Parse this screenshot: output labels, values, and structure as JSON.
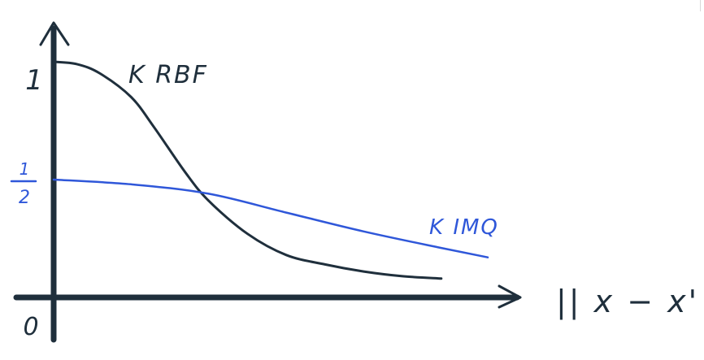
{
  "chart_data": {
    "type": "line",
    "title": "",
    "xlabel": "|| x − x' ||",
    "ylabel": "",
    "ylim": [
      0,
      1
    ],
    "y_ticks": [
      {
        "value": 1,
        "label": "1"
      },
      {
        "value": 0.5,
        "label": "1/2"
      },
      {
        "value": 0,
        "label": "0"
      }
    ],
    "grid": false,
    "legend": "none",
    "series": [
      {
        "name": "K RBF",
        "color": "#1f2f3c",
        "x": [
          0.0,
          0.3,
          0.6,
          1.0,
          1.3,
          1.7,
          2.0,
          2.5,
          3.0,
          3.5,
          4.0,
          4.5,
          5.0
        ],
        "y": [
          1.0,
          0.99,
          0.95,
          0.85,
          0.72,
          0.53,
          0.41,
          0.27,
          0.18,
          0.14,
          0.11,
          0.09,
          0.08
        ]
      },
      {
        "name": "K IMQ",
        "color": "#2f57d9",
        "x": [
          0.0,
          1.0,
          2.0,
          3.0,
          4.0,
          5.0,
          5.6
        ],
        "y": [
          0.5,
          0.48,
          0.44,
          0.36,
          0.28,
          0.21,
          0.17
        ]
      }
    ],
    "series_labels": [
      {
        "text": "K RBF",
        "color": "#1f2f3c"
      },
      {
        "text": "K IMQ",
        "color": "#2f57d9"
      }
    ]
  }
}
